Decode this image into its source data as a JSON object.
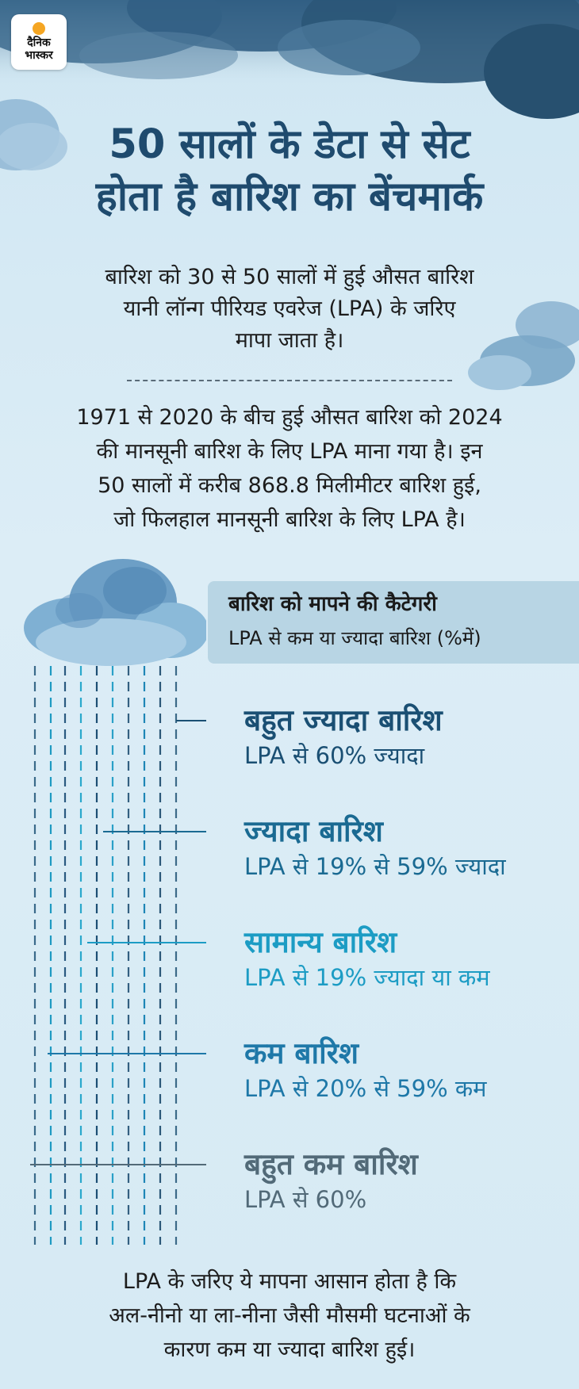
{
  "logo": {
    "name": "दैनिक भास्कर"
  },
  "title": {
    "line1": "50 सालों के डेटा से सेट",
    "line2": "होता है बारिश का बेंचमार्क"
  },
  "intro": {
    "line1": "बारिश को 30 से 50 सालों में हुई औसत बारिश",
    "line2": "यानी लॉन्ग पीरियड एवरेज (LPA) के जरिए",
    "line3": "मापा जाता है।"
  },
  "paragraph": {
    "line1": "1971 से 2020 के बीच हुई औसत बारिश को 2024",
    "line2": "की मानसूनी बारिश के लिए LPA माना गया है। इन",
    "line3": "50 सालों में करीब 868.8 मिलीमीटर बारिश हुई,",
    "line4": "जो फिलहाल मानसूनी बारिश के लिए LPA है।"
  },
  "category_header": {
    "title": "बारिश को मापने की कैटेगरी",
    "subtitle": "LPA से कम या ज्यादा बारिश (%में)"
  },
  "categories": [
    {
      "name": "बहुत ज्यादा बारिश",
      "desc": "LPA से 60% ज्यादा",
      "color": "#1a4f73"
    },
    {
      "name": "ज्यादा बारिश",
      "desc": "LPA से 19% से 59% ज्यादा",
      "color": "#1a6a92"
    },
    {
      "name": "सामान्य बारिश",
      "desc": "LPA से 19% ज्यादा या कम",
      "color": "#1c9cc4"
    },
    {
      "name": "कम बारिश",
      "desc": "LPA से 20% से 59% कम",
      "color": "#1e78a8"
    },
    {
      "name": "बहुत कम बारिश",
      "desc": "LPA से 60%",
      "color": "#526a78"
    }
  ],
  "outro": {
    "line1": "LPA के जरिए ये मापना आसान होता है कि",
    "line2": "अल-नीनो या ला-नीना जैसी मौसमी घटनाओं के",
    "line3": "कारण कम या ज्यादा बारिश हुई।"
  },
  "colors": {
    "title": "#1f4b6e",
    "background": "#d6eaf4",
    "cloud": "#3e6f93"
  }
}
